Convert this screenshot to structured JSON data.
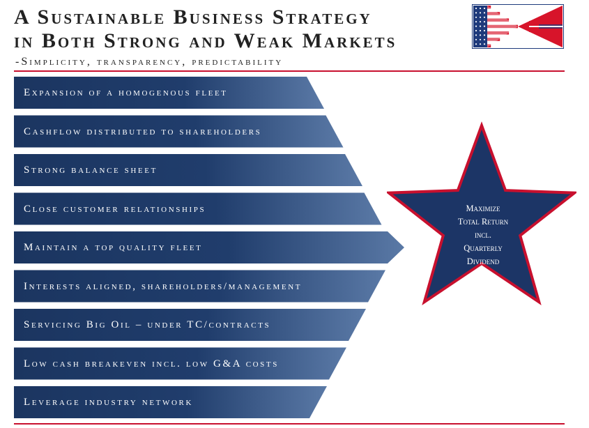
{
  "header": {
    "title_line1": "A Sustainable Business Strategy",
    "title_line2": "in Both Strong and Weak Markets",
    "subtitle": "-Simplicity, transparency, predictability"
  },
  "logo": {
    "icon": "flag-logo",
    "colors": {
      "red": "#d7142a",
      "blue": "#1e3a7b",
      "white": "#ffffff"
    }
  },
  "strategy_items": [
    {
      "label": "Expansion of a homogenous fleet"
    },
    {
      "label": "Cashflow distributed to shareholders"
    },
    {
      "label": "Strong balance sheet"
    },
    {
      "label": "Close customer relationships"
    },
    {
      "label": "Maintain a top quality fleet"
    },
    {
      "label": "Interests aligned, shareholders/management"
    },
    {
      "label": "Servicing Big Oil – under TC/contracts"
    },
    {
      "label": "Low cash breakeven incl. low G&A costs"
    },
    {
      "label": "Leverage industry network"
    }
  ],
  "goal": {
    "icon": "star-icon",
    "lines": [
      "Maximize",
      "Total Return",
      "incl.",
      "Quarterly",
      "Dividend"
    ]
  },
  "colors": {
    "bar_dark": "#1b3560",
    "bar_light": "#5a79a6",
    "star_fill": "#1c3566",
    "star_outline": "#c8102e",
    "rule": "#c8102e",
    "title_text": "#222222"
  }
}
